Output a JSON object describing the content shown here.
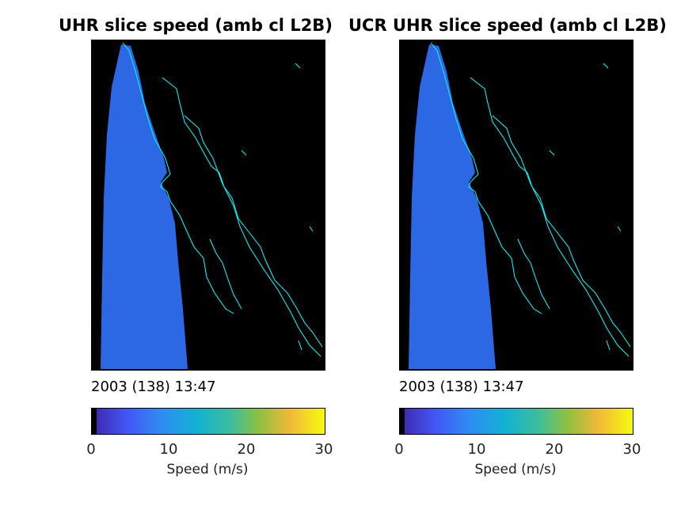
{
  "chart_data": [
    {
      "type": "heatmap",
      "title": "UHR slice speed (amb cl L2B)",
      "timestamp": "2003 (138) 13:47",
      "colorbar": {
        "label": "Speed (m/s)",
        "ticks": [
          "0",
          "10",
          "20",
          "30"
        ],
        "range": [
          0,
          30
        ],
        "colormap": "parula"
      },
      "typical_speed_ms": 6
    },
    {
      "type": "heatmap",
      "title": "UCR UHR slice speed (amb cl L2B)",
      "timestamp": "2003 (138) 13:47",
      "colorbar": {
        "label": "Speed (m/s)",
        "ticks": [
          "0",
          "10",
          "20",
          "30"
        ],
        "range": [
          0,
          30
        ],
        "colormap": "parula"
      },
      "typical_speed_ms": 6
    }
  ],
  "colors": {
    "background": "#000000",
    "coastline": "#00ffff",
    "swath": "#2f6ef0"
  }
}
